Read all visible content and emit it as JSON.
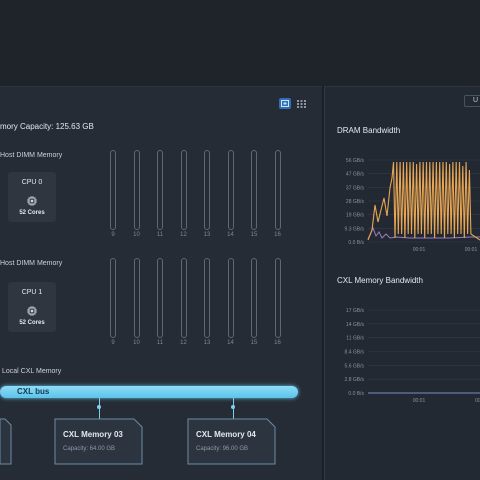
{
  "header": {
    "right_button_label": "U"
  },
  "left": {
    "capacity_label": "mory Capacity: 125.63 GB",
    "view_toggle": {
      "graphic_icon": "chip-view-icon",
      "table_icon": "grid-view-icon"
    },
    "sections": [
      {
        "title": "Host DIMM Memory",
        "cpu": {
          "label": "CPU 0",
          "cores": "52 Cores",
          "icon": "cpu-icon"
        },
        "slots": [
          "9",
          "10",
          "11",
          "12",
          "13",
          "14",
          "15",
          "16"
        ]
      },
      {
        "title": "Host DIMM Memory",
        "cpu": {
          "label": "CPU 1",
          "cores": "52 Cores",
          "icon": "cpu-icon"
        },
        "slots": [
          "9",
          "10",
          "11",
          "12",
          "13",
          "14",
          "15",
          "16"
        ]
      }
    ],
    "cxl": {
      "title": "Local CXL Memory",
      "bus_label": "CXL bus",
      "devices": [
        {
          "name": "CXL Memory 03",
          "capacity": "Capacity: 64.00 GB"
        },
        {
          "name": "CXL Memory 04",
          "capacity": "Capacity: 96.00 GB"
        }
      ]
    }
  },
  "right": {
    "dram": {
      "title": "DRAM Bandwidth",
      "y_ticks": [
        "56 GB/s",
        "47 GB/s",
        "37 GB/s",
        "28 GB/s",
        "19 GB/s",
        "9.3 GB/s",
        "0.0 B/s"
      ],
      "x_ticks": [
        "00:01",
        "00:01"
      ],
      "colors": {
        "primary": "#e8a552",
        "secondary": "#9a7cc2"
      }
    },
    "cxl_bw": {
      "title": "CXL Memory Bandwidth",
      "y_ticks": [
        "17 GB/s",
        "14 GB/s",
        "11 GB/s",
        "8.4 GB/s",
        "5.6 GB/s",
        "2.8 GB/s",
        "0.0 B/s"
      ],
      "x_ticks": [
        "00:01",
        "00:0"
      ],
      "colors": {
        "line": "#7c8cc8"
      }
    }
  }
}
